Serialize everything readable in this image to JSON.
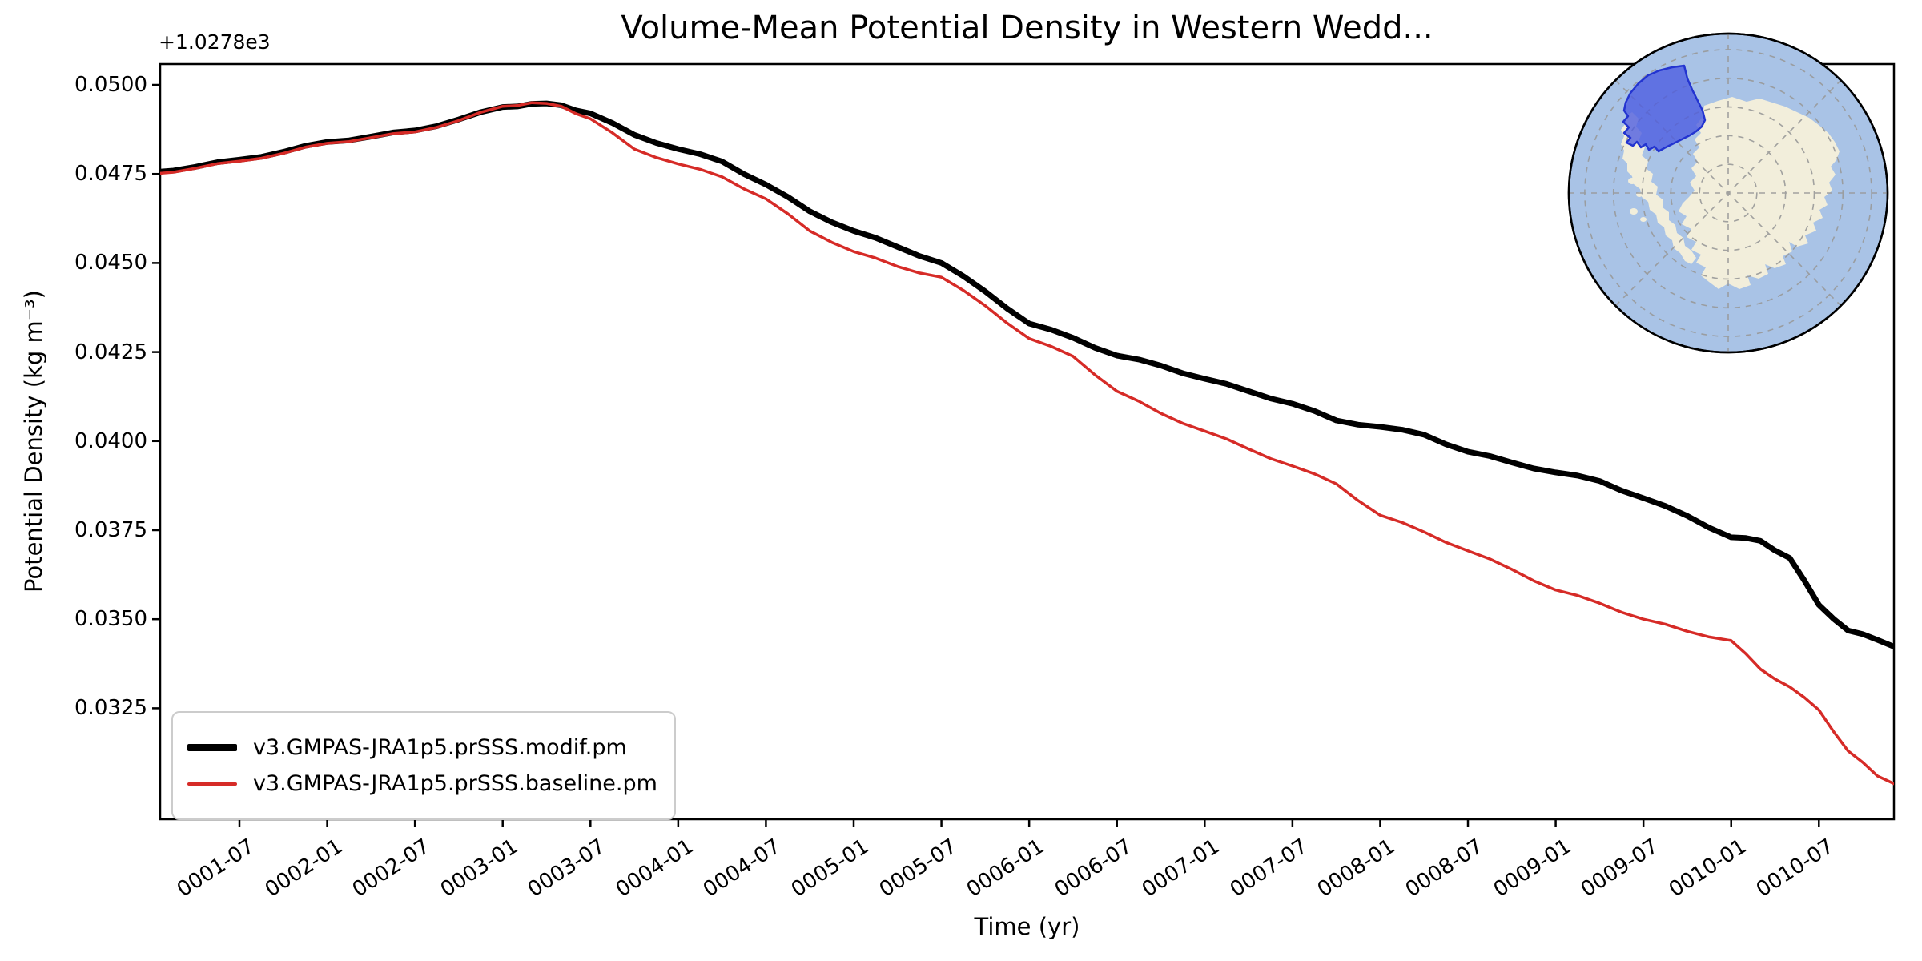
{
  "figure": {
    "background": "#ffffff"
  },
  "chart_data": {
    "type": "line",
    "title": "Volume-Mean Potential Density in Western Wedd...",
    "xlabel": "Time (yr)",
    "ylabel": "Potential Density (kg m⁻³)",
    "y_offset_label": "+1.0278e3",
    "y_offset": 1027.8,
    "grid": false,
    "legend_position": "lower-left",
    "x_tick_labels": [
      "0001-07",
      "0002-01",
      "0002-07",
      "0003-01",
      "0003-07",
      "0004-01",
      "0004-07",
      "0005-01",
      "0005-07",
      "0006-01",
      "0006-07",
      "0007-01",
      "0007-07",
      "0008-01",
      "0008-07",
      "0009-01",
      "0009-07",
      "0010-01",
      "0010-07"
    ],
    "y_tick_labels": [
      "0.0500",
      "0.0475",
      "0.0450",
      "0.0425",
      "0.0400",
      "0.0375",
      "0.0350",
      "0.0325"
    ],
    "y_tick_values": [
      0.05,
      0.0475,
      0.045,
      0.0425,
      0.04,
      0.0375,
      0.035,
      0.0325
    ],
    "ylim": [
      0.0294,
      0.0506
    ],
    "xlim_months_since_0001_01": [
      0.6,
      119.3
    ],
    "series": [
      {
        "name": "v3.GMPAS-JRA1p5.prSSS.modif.pm",
        "color": "#000000",
        "line_width": 7,
        "months": [
          0,
          3,
          6,
          9,
          12,
          15,
          18,
          21,
          24,
          26,
          28,
          30,
          33,
          36,
          39,
          42,
          45,
          48,
          51,
          54,
          57,
          60,
          63,
          66,
          69,
          72,
          75,
          78,
          81,
          84,
          87,
          90,
          93,
          96,
          99,
          102,
          105,
          108,
          110,
          112,
          114,
          116,
          118,
          119.3
        ],
        "values": [
          0.04755,
          0.0477,
          0.0479,
          0.04812,
          0.0484,
          0.04855,
          0.04872,
          0.04903,
          0.04938,
          0.04947,
          0.04943,
          0.0492,
          0.0486,
          0.0482,
          0.04785,
          0.0472,
          0.04645,
          0.0459,
          0.04545,
          0.045,
          0.0442,
          0.0433,
          0.0429,
          0.0424,
          0.04212,
          0.04175,
          0.0414,
          0.04105,
          0.04058,
          0.0404,
          0.04018,
          0.0397,
          0.0394,
          0.03912,
          0.03888,
          0.0384,
          0.0379,
          0.0373,
          0.0372,
          0.03672,
          0.0354,
          0.03468,
          0.03442,
          0.0342
        ]
      },
      {
        "name": "v3.GMPAS-JRA1p5.prSSS.baseline.pm",
        "color": "#d62b27",
        "line_width": 3.5,
        "months": [
          0,
          3,
          6,
          9,
          12,
          15,
          18,
          21,
          24,
          26,
          28,
          30,
          33,
          36,
          39,
          42,
          45,
          48,
          51,
          54,
          57,
          60,
          63,
          66,
          69,
          72,
          75,
          78,
          81,
          84,
          87,
          90,
          93,
          96,
          99,
          102,
          105,
          108,
          110,
          112,
          114,
          116,
          118,
          119.3
        ],
        "values": [
          0.0475,
          0.04766,
          0.04786,
          0.04808,
          0.04836,
          0.04852,
          0.04868,
          0.049,
          0.0494,
          0.0495,
          0.0494,
          0.04905,
          0.0482,
          0.04778,
          0.04742,
          0.0468,
          0.0459,
          0.04532,
          0.0449,
          0.0446,
          0.0438,
          0.04288,
          0.04238,
          0.0414,
          0.04078,
          0.04028,
          0.03978,
          0.0393,
          0.0388,
          0.03792,
          0.03745,
          0.03692,
          0.0364,
          0.03582,
          0.03545,
          0.035,
          0.03466,
          0.0344,
          0.0336,
          0.0331,
          0.03245,
          0.0313,
          0.0306,
          0.03035
        ]
      }
    ],
    "legend_entries": [
      "v3.GMPAS-JRA1p5.prSSS.modif.pm",
      "v3.GMPAS-JRA1p5.prSSS.baseline.pm"
    ]
  },
  "inset_map": {
    "name": "antarctica-south-polar-inset",
    "ocean_color": "#a9c3e6",
    "land_color": "#f2eedb",
    "graticule_color": "#999999",
    "outline_color": "#000000",
    "region_fill": "#4b5be0",
    "region_border": "#2334d0",
    "region_name": "western-weddell-highlight"
  }
}
